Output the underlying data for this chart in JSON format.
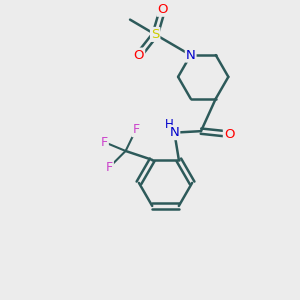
{
  "background_color": "#ececec",
  "bond_color": "#2d5a5a",
  "atom_colors": {
    "N": "#0000cc",
    "O": "#ff0000",
    "S": "#cccc00",
    "F": "#cc44cc",
    "C": "#000000"
  },
  "figsize": [
    3.0,
    3.0
  ],
  "dpi": 100,
  "xlim": [
    0,
    10
  ],
  "ylim": [
    0,
    10
  ]
}
